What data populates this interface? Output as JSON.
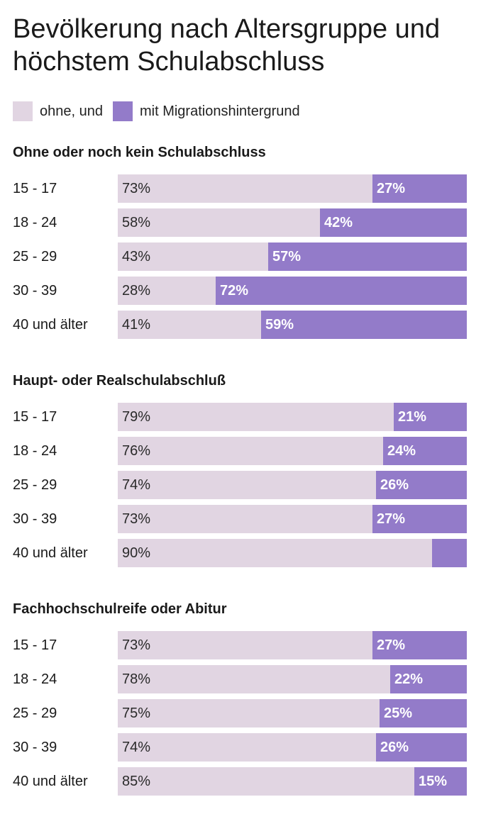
{
  "title": "Bevölkerung nach Altersgruppe und höchstem Schulabschluss",
  "legend": [
    {
      "label": "ohne, und",
      "color": "#e1d5e2"
    },
    {
      "label": "mit Migrationshintergrund",
      "color": "#937bc9"
    }
  ],
  "chart_data": [
    {
      "type": "bar",
      "orientation": "horizontal",
      "stacked": true,
      "title": "Ohne oder noch kein Schulabschluss",
      "categories": [
        "15 - 17",
        "18 - 24",
        "25 - 29",
        "30 - 39",
        "40 und älter"
      ],
      "series": [
        {
          "name": "ohne, und",
          "values": [
            73,
            58,
            43,
            28,
            41
          ],
          "labels": [
            "73%",
            "58%",
            "43%",
            "28%",
            "41%"
          ]
        },
        {
          "name": "mit Migrationshintergrund",
          "values": [
            27,
            42,
            57,
            72,
            59
          ],
          "labels": [
            "27%",
            "42%",
            "57%",
            "72%",
            "59%"
          ]
        }
      ],
      "xlim": [
        0,
        100
      ]
    },
    {
      "type": "bar",
      "orientation": "horizontal",
      "stacked": true,
      "title": "Haupt- oder Realschulabschluß",
      "categories": [
        "15 - 17",
        "18 - 24",
        "25 - 29",
        "30 - 39",
        "40 und älter"
      ],
      "series": [
        {
          "name": "ohne, und",
          "values": [
            79,
            76,
            74,
            73,
            90
          ],
          "labels": [
            "79%",
            "76%",
            "74%",
            "73%",
            "90%"
          ]
        },
        {
          "name": "mit Migrationshintergrund",
          "values": [
            21,
            24,
            26,
            27,
            10
          ],
          "labels": [
            "21%",
            "24%",
            "26%",
            "27%",
            ""
          ]
        }
      ],
      "xlim": [
        0,
        100
      ]
    },
    {
      "type": "bar",
      "orientation": "horizontal",
      "stacked": true,
      "title": "Fachhochschulreife oder Abitur",
      "categories": [
        "15 - 17",
        "18 - 24",
        "25 - 29",
        "30 - 39",
        "40 und älter"
      ],
      "series": [
        {
          "name": "ohne, und",
          "values": [
            73,
            78,
            75,
            74,
            85
          ],
          "labels": [
            "73%",
            "78%",
            "75%",
            "74%",
            "85%"
          ]
        },
        {
          "name": "mit Migrationshintergrund",
          "values": [
            27,
            22,
            25,
            26,
            15
          ],
          "labels": [
            "27%",
            "22%",
            "25%",
            "26%",
            "15%"
          ]
        }
      ],
      "xlim": [
        0,
        100
      ]
    }
  ]
}
